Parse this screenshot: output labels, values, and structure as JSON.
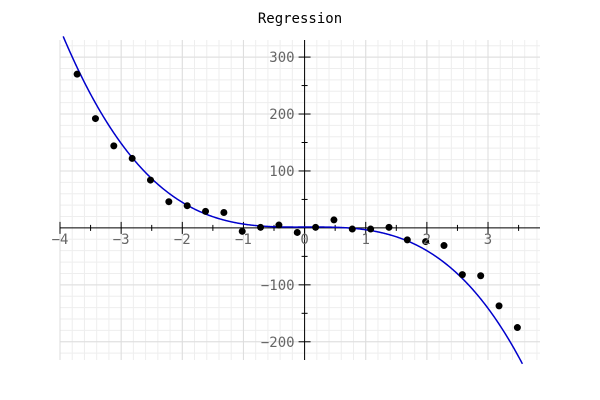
{
  "chart_data": {
    "type": "scatter",
    "title": "Regression",
    "xlabel": "",
    "ylabel": "",
    "xlim": [
      -4,
      3.85
    ],
    "ylim": [
      -232,
      330
    ],
    "grid": true,
    "x_ticks": [
      -4,
      -3,
      -2,
      -1,
      0,
      1,
      2,
      3
    ],
    "x_tick_labels": [
      "−4",
      "−3",
      "−2",
      "−1",
      "0",
      "1",
      "2",
      "3"
    ],
    "y_ticks": [
      -200,
      -100,
      100,
      200,
      300
    ],
    "y_tick_labels": [
      "−200",
      "−100",
      "100",
      "200",
      "300"
    ],
    "series": [
      {
        "kind": "points",
        "color": "#000000",
        "x": [
          -3.72,
          -3.42,
          -3.12,
          -2.82,
          -2.52,
          -2.22,
          -1.92,
          -1.62,
          -1.32,
          -1.02,
          -0.72,
          -0.42,
          -0.12,
          0.18,
          0.48,
          0.78,
          1.08,
          1.38,
          1.68,
          1.98,
          2.28,
          2.58,
          2.88,
          3.18,
          3.48
        ],
        "y": [
          270,
          192,
          144,
          122,
          84,
          46,
          39,
          29,
          27,
          -6,
          1,
          5,
          -8,
          1,
          14,
          -2,
          -2,
          1,
          -21,
          -24,
          -31,
          -82,
          -84,
          -137,
          -175
        ]
      },
      {
        "kind": "fit",
        "color": "#0000cc",
        "coefficients_cubic_to_constant": [
          -5.41,
          0.23,
          0.4,
          1.5
        ]
      }
    ]
  }
}
